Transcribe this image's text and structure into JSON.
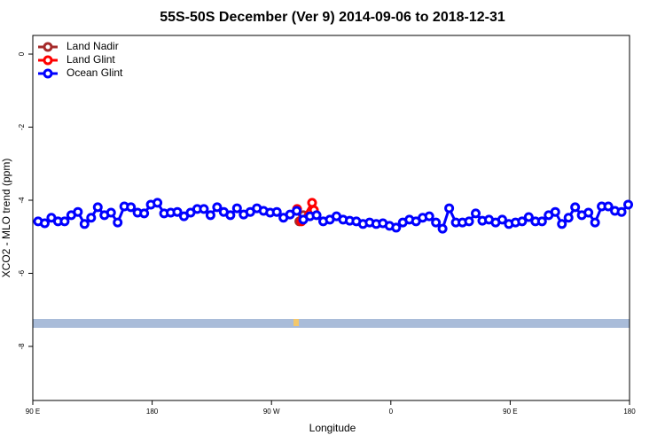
{
  "chart_data": {
    "type": "line",
    "title": "55S-50S December (Ver 9)   2014-09-06 to 2018-12-31",
    "x_label": "Longitude",
    "y_label": "XCO2 - MLO trend (ppm)",
    "xlim": [
      90,
      540
    ],
    "ylim": [
      -9.48,
      0.51
    ],
    "xticks": [
      {
        "value": 90,
        "label": "90 E"
      },
      180,
      {
        "value": 270,
        "label": "90 W"
      },
      {
        "value": 360,
        "label": "0"
      },
      {
        "value": 450,
        "label": "90 E"
      },
      {
        "value": 540,
        "label": "180"
      }
    ],
    "yticks": [
      0,
      -2,
      -4,
      -6,
      -8
    ],
    "legend": "top-left",
    "series": [
      {
        "name": "Land Nadir",
        "color": "#a52a2a",
        "x": [
          291,
          294
        ],
        "values": [
          -4.58,
          -4.41
        ]
      },
      {
        "name": "Land Glint",
        "color": "#ff0000",
        "x": [
          289.3,
          292.6,
          300.6,
          302
        ],
        "values": [
          -4.24,
          -4.58,
          -4.07,
          -4.27
        ]
      },
      {
        "name": "Ocean Glint",
        "color": "#0000ff",
        "x": [
          94,
          99,
          104,
          109,
          114,
          119,
          124,
          129,
          134,
          139,
          144,
          149,
          154,
          159,
          164,
          169,
          174,
          179,
          184,
          189,
          194,
          199,
          204,
          209,
          214,
          219,
          224,
          229,
          234,
          239,
          244,
          249,
          254,
          259,
          264,
          269,
          274,
          279,
          284,
          289,
          294,
          299,
          304,
          309,
          314,
          319,
          324,
          329,
          334,
          339,
          344,
          349,
          354,
          359,
          364,
          369,
          374,
          379,
          384,
          389,
          394,
          399,
          404,
          409,
          414,
          419,
          424,
          429,
          434,
          439,
          444,
          449,
          454,
          459,
          464,
          469,
          474,
          479,
          484,
          489,
          494,
          499,
          504,
          509,
          514,
          519,
          524,
          529,
          534,
          539
        ],
        "values": [
          -4.58,
          -4.63,
          -4.48,
          -4.58,
          -4.58,
          -4.41,
          -4.32,
          -4.65,
          -4.48,
          -4.19,
          -4.41,
          -4.34,
          -4.61,
          -4.17,
          -4.19,
          -4.34,
          -4.36,
          -4.12,
          -4.07,
          -4.36,
          -4.34,
          -4.32,
          -4.44,
          -4.34,
          -4.24,
          -4.24,
          -4.41,
          -4.19,
          -4.32,
          -4.41,
          -4.22,
          -4.39,
          -4.32,
          -4.22,
          -4.29,
          -4.34,
          -4.32,
          -4.48,
          -4.39,
          -4.29,
          -4.53,
          -4.44,
          -4.41,
          -4.58,
          -4.53,
          -4.44,
          -4.53,
          -4.56,
          -4.58,
          -4.65,
          -4.61,
          -4.65,
          -4.63,
          -4.7,
          -4.75,
          -4.61,
          -4.53,
          -4.58,
          -4.48,
          -4.44,
          -4.61,
          -4.78,
          -4.22,
          -4.61,
          -4.61,
          -4.58,
          -4.36,
          -4.56,
          -4.53,
          -4.61,
          -4.53,
          -4.65,
          -4.61,
          -4.58,
          -4.46,
          -4.58,
          -4.58,
          -4.41,
          -4.32,
          -4.65,
          -4.48,
          -4.19,
          -4.41,
          -4.34,
          -4.61,
          -4.17,
          -4.17,
          -4.29,
          -4.32,
          -4.12
        ]
      }
    ]
  }
}
